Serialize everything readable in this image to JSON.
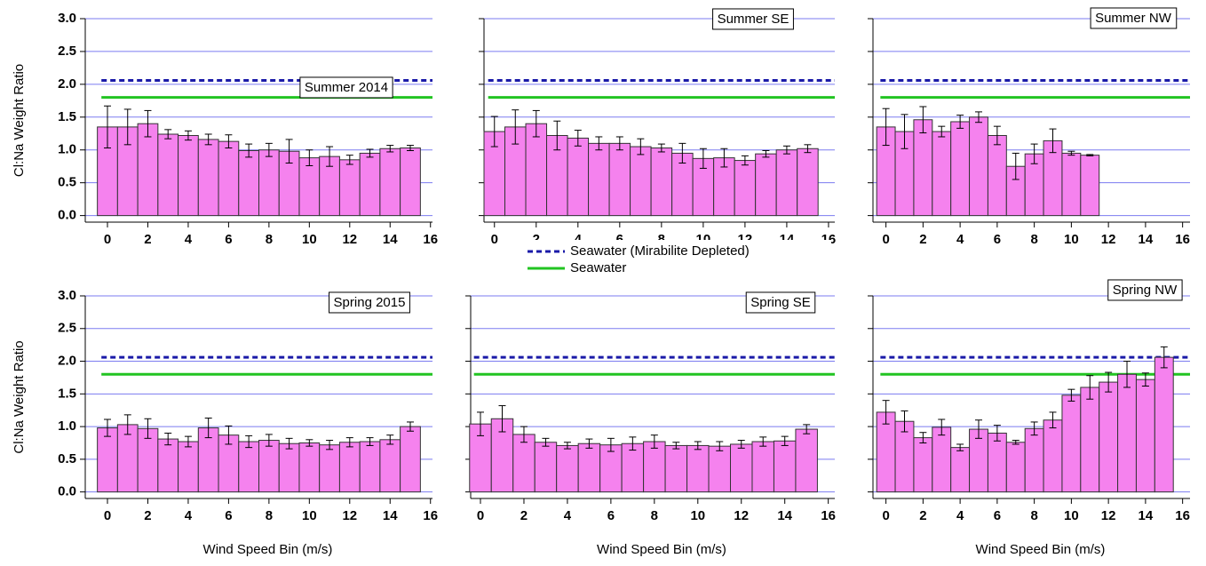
{
  "chart_data": [
    {
      "type": "bar",
      "title": "Summer 2014",
      "ylabel": "Cl:Na Weight Ratio",
      "color": "#f582ee",
      "x": [
        0,
        1,
        2,
        3,
        4,
        5,
        6,
        7,
        8,
        9,
        10,
        11,
        12,
        13,
        14,
        15
      ],
      "values": [
        1.35,
        1.35,
        1.4,
        1.24,
        1.22,
        1.16,
        1.13,
        0.99,
        1.0,
        0.98,
        0.88,
        0.9,
        0.85,
        0.95,
        1.02,
        1.03
      ],
      "errors": [
        0.32,
        0.27,
        0.2,
        0.07,
        0.07,
        0.08,
        0.1,
        0.1,
        0.1,
        0.18,
        0.12,
        0.15,
        0.07,
        0.06,
        0.05,
        0.04
      ],
      "xlim": [
        -1.1,
        16.1
      ],
      "ylim": [
        -0.1,
        3.0
      ],
      "xticks": [
        0,
        2,
        4,
        6,
        8,
        10,
        12,
        14,
        16
      ],
      "yticks": [
        {
          "value": 0,
          "label": "0.0"
        },
        {
          "value": 0.5,
          "label": "0.5"
        },
        {
          "value": 1,
          "label": "1.0"
        },
        {
          "value": 1.5,
          "label": "1.5"
        },
        {
          "value": 2,
          "label": "2.0"
        },
        {
          "value": 2.5,
          "label": "2.5"
        },
        {
          "value": 3,
          "label": "3.0"
        }
      ],
      "grid": true
    },
    {
      "type": "bar",
      "title": "Summer SE",
      "color": "#f582ee",
      "ytick_labels": false,
      "x": [
        0,
        1,
        2,
        3,
        4,
        5,
        6,
        7,
        8,
        9,
        10,
        11,
        12,
        13,
        14,
        15
      ],
      "values": [
        1.28,
        1.35,
        1.4,
        1.22,
        1.18,
        1.1,
        1.1,
        1.05,
        1.03,
        0.95,
        0.87,
        0.88,
        0.84,
        0.94,
        1.0,
        1.02
      ],
      "errors": [
        0.23,
        0.26,
        0.2,
        0.22,
        0.12,
        0.1,
        0.1,
        0.12,
        0.06,
        0.15,
        0.15,
        0.14,
        0.07,
        0.05,
        0.06,
        0.06
      ],
      "xlim": [
        -0.5,
        16.3
      ],
      "ylim": [
        -0.1,
        3.0
      ],
      "xticks": [
        0,
        2,
        4,
        6,
        8,
        10,
        12,
        14,
        16
      ],
      "yticks": [
        0,
        0.5,
        1,
        1.5,
        2,
        2.5,
        3
      ],
      "grid": true
    },
    {
      "type": "bar",
      "title": "Summer NW",
      "color": "#f582ee",
      "ytick_labels": false,
      "x": [
        0,
        1,
        2,
        3,
        4,
        5,
        6,
        7,
        8,
        9,
        10,
        11
      ],
      "values": [
        1.35,
        1.28,
        1.46,
        1.28,
        1.43,
        1.5,
        1.22,
        0.75,
        0.94,
        1.14,
        0.95,
        0.92
      ],
      "errors": [
        0.28,
        0.26,
        0.2,
        0.08,
        0.1,
        0.08,
        0.14,
        0.2,
        0.15,
        0.18,
        0.03,
        0.01
      ],
      "xlim": [
        -0.7,
        16.4
      ],
      "ylim": [
        -0.1,
        3.0
      ],
      "xticks": [
        0,
        2,
        4,
        6,
        8,
        10,
        12,
        14,
        16
      ],
      "yticks": [
        0,
        0.5,
        1,
        1.5,
        2,
        2.5,
        3
      ],
      "grid": true
    },
    {
      "type": "bar",
      "title": "Spring 2015",
      "ylabel": "Cl:Na Weight Ratio",
      "xlabel": "Wind Speed Bin (m/s)",
      "color": "#f582ee",
      "x": [
        0,
        1,
        2,
        3,
        4,
        5,
        6,
        7,
        8,
        9,
        10,
        11,
        12,
        13,
        14,
        15
      ],
      "values": [
        0.98,
        1.03,
        0.97,
        0.81,
        0.77,
        0.98,
        0.87,
        0.77,
        0.79,
        0.74,
        0.75,
        0.72,
        0.76,
        0.77,
        0.8,
        1.0
      ],
      "errors": [
        0.13,
        0.15,
        0.15,
        0.09,
        0.08,
        0.15,
        0.14,
        0.09,
        0.09,
        0.08,
        0.05,
        0.07,
        0.07,
        0.06,
        0.07,
        0.07
      ],
      "xlim": [
        -1.1,
        16.1
      ],
      "ylim": [
        -0.1,
        3.0
      ],
      "xticks": [
        0,
        2,
        4,
        6,
        8,
        10,
        12,
        14,
        16
      ],
      "yticks": [
        {
          "value": 0,
          "label": "0.0"
        },
        {
          "value": 0.5,
          "label": "0.5"
        },
        {
          "value": 1,
          "label": "1.0"
        },
        {
          "value": 1.5,
          "label": "1.5"
        },
        {
          "value": 2,
          "label": "2.0"
        },
        {
          "value": 2.5,
          "label": "2.5"
        },
        {
          "value": 3,
          "label": "3.0"
        }
      ],
      "grid": true
    },
    {
      "type": "bar",
      "title": "Spring SE",
      "xlabel": "Wind Speed Bin (m/s)",
      "color": "#f582ee",
      "ytick_labels": false,
      "x": [
        0,
        1,
        2,
        3,
        4,
        5,
        6,
        7,
        8,
        9,
        10,
        11,
        12,
        13,
        14,
        15
      ],
      "values": [
        1.04,
        1.12,
        0.88,
        0.76,
        0.71,
        0.74,
        0.72,
        0.74,
        0.77,
        0.71,
        0.71,
        0.7,
        0.73,
        0.77,
        0.78,
        0.96
      ],
      "errors": [
        0.18,
        0.2,
        0.12,
        0.06,
        0.05,
        0.07,
        0.1,
        0.1,
        0.1,
        0.05,
        0.06,
        0.07,
        0.06,
        0.07,
        0.07,
        0.07
      ],
      "xlim": [
        -0.45,
        16.3
      ],
      "ylim": [
        -0.1,
        3.0
      ],
      "xticks": [
        0,
        2,
        4,
        6,
        8,
        10,
        12,
        14,
        16
      ],
      "yticks": [
        0,
        0.5,
        1,
        1.5,
        2,
        2.5,
        3
      ],
      "grid": true
    },
    {
      "type": "bar",
      "title": "Spring NW",
      "xlabel": "Wind Speed Bin (m/s)",
      "color": "#f582ee",
      "ytick_labels": false,
      "x": [
        0,
        1,
        2,
        3,
        4,
        5,
        6,
        7,
        8,
        9,
        10,
        11,
        12,
        13,
        14,
        15
      ],
      "values": [
        1.22,
        1.08,
        0.83,
        0.99,
        0.68,
        0.96,
        0.9,
        0.76,
        0.97,
        1.1,
        1.48,
        1.6,
        1.68,
        1.8,
        1.72,
        2.06
      ],
      "errors": [
        0.18,
        0.16,
        0.08,
        0.12,
        0.05,
        0.14,
        0.12,
        0.03,
        0.1,
        0.12,
        0.09,
        0.18,
        0.15,
        0.2,
        0.1,
        0.16
      ],
      "xlim": [
        -0.7,
        16.4
      ],
      "ylim": [
        -0.1,
        3.0
      ],
      "xticks": [
        0,
        2,
        4,
        6,
        8,
        10,
        12,
        14,
        16
      ],
      "yticks": [
        0,
        0.5,
        1,
        1.5,
        2,
        2.5,
        3
      ],
      "grid": true
    }
  ],
  "reference_lines": [
    {
      "name": "Seawater (Mirabilite Depleted)",
      "value": 2.06,
      "color": "#1a1aa8",
      "dashed": true
    },
    {
      "name": "Seawater",
      "value": 1.8,
      "color": "#22c422",
      "dashed": false
    }
  ]
}
